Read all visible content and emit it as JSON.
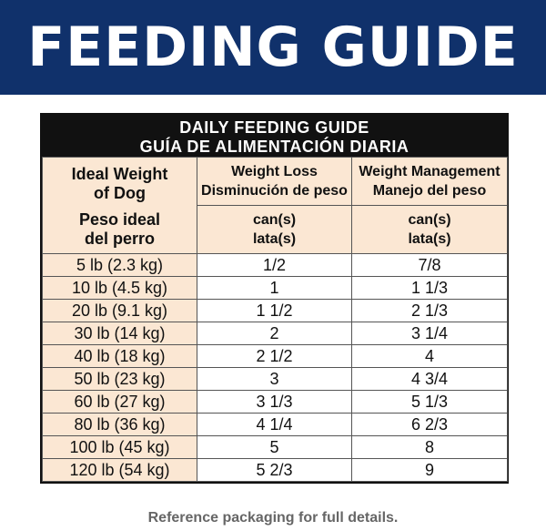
{
  "banner": {
    "title": "FEEDING GUIDE"
  },
  "guide": {
    "title_en": "DAILY FEEDING GUIDE",
    "title_es": "GUÍA DE ALIMENTACIÓN DIARIA",
    "weight_header": {
      "en_line1": "Ideal Weight",
      "en_line2": "of Dog",
      "es_line1": "Peso ideal",
      "es_line2": "del perro"
    },
    "columns": [
      {
        "en": "Weight Loss",
        "es": "Disminución de peso",
        "unit_en": "can(s)",
        "unit_es": "lata(s)"
      },
      {
        "en": "Weight Management",
        "es": "Manejo del peso",
        "unit_en": "can(s)",
        "unit_es": "lata(s)"
      }
    ],
    "rows": [
      {
        "weight": "5 lb (2.3 kg)",
        "loss": "1/2",
        "mgmt": "7/8"
      },
      {
        "weight": "10 lb (4.5 kg)",
        "loss": "1",
        "mgmt": "1 1/3"
      },
      {
        "weight": "20 lb (9.1 kg)",
        "loss": "1 1/2",
        "mgmt": "2 1/3"
      },
      {
        "weight": "30 lb (14 kg)",
        "loss": "2",
        "mgmt": "3 1/4"
      },
      {
        "weight": "40 lb (18 kg)",
        "loss": "2 1/2",
        "mgmt": "4"
      },
      {
        "weight": "50 lb (23 kg)",
        "loss": "3",
        "mgmt": "4 3/4"
      },
      {
        "weight": "60 lb (27 kg)",
        "loss": "3 1/3",
        "mgmt": "5 1/3"
      },
      {
        "weight": "80 lb (36 kg)",
        "loss": "4 1/4",
        "mgmt": "6 2/3"
      },
      {
        "weight": "100 lb (45 kg)",
        "loss": "5",
        "mgmt": "8"
      },
      {
        "weight": "120 lb (54 kg)",
        "loss": "5 2/3",
        "mgmt": "9"
      }
    ]
  },
  "footnote": "Reference packaging for full details.",
  "colors": {
    "banner": "#10316b",
    "header_bg": "#111111",
    "peach": "#fbe7d3"
  }
}
